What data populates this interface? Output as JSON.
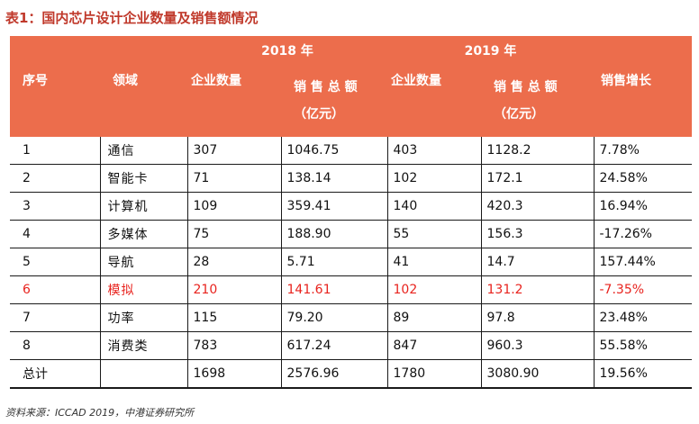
{
  "title": "表1：国内芯片设计企业数量及销售额情况",
  "header": {
    "year_2018": "2018 年",
    "year_2019": "2019 年",
    "col_idx": "序号",
    "col_field": "领域",
    "col_count_2018": "企业数量",
    "col_sales_2018_line1": "销 售 总 额",
    "col_sales_2018_line2": "（亿元）",
    "col_count_2019": "企业数量",
    "col_sales_2019_line1": "销 售 总 额",
    "col_sales_2019_line2": "（亿元）",
    "col_growth": "销售增长"
  },
  "rows": [
    {
      "idx": "1",
      "field": "通信",
      "c2018": "307",
      "s2018": "1046.75",
      "c2019": "403",
      "s2019": "1128.2",
      "growth": "7.78%"
    },
    {
      "idx": "2",
      "field": "智能卡",
      "c2018": "71",
      "s2018": "138.14",
      "c2019": "102",
      "s2019": "172.1",
      "growth": "24.58%"
    },
    {
      "idx": "3",
      "field": "计算机",
      "c2018": "109",
      "s2018": "359.41",
      "c2019": "140",
      "s2019": "420.3",
      "growth": "16.94%"
    },
    {
      "idx": "4",
      "field": "多媒体",
      "c2018": "75",
      "s2018": "188.90",
      "c2019": "55",
      "s2019": "156.3",
      "growth": "-17.26%"
    },
    {
      "idx": "5",
      "field": "导航",
      "c2018": "28",
      "s2018": "5.71",
      "c2019": "41",
      "s2019": "14.7",
      "growth": "157.44%"
    },
    {
      "idx": "6",
      "field": "模拟",
      "c2018": "210",
      "s2018": "141.61",
      "c2019": "102",
      "s2019": "131.2",
      "growth": "-7.35%"
    },
    {
      "idx": "7",
      "field": "功率",
      "c2018": "115",
      "s2018": "79.20",
      "c2019": "89",
      "s2019": "97.8",
      "growth": "23.48%"
    },
    {
      "idx": "8",
      "field": "消费类",
      "c2018": "783",
      "s2018": "617.24",
      "c2019": "847",
      "s2019": "960.3",
      "growth": "55.58%"
    }
  ],
  "total": {
    "idx": "总计",
    "field": "",
    "c2018": "1698",
    "s2018": "2576.96",
    "c2019": "1780",
    "s2019": "3080.90",
    "growth": "19.56%"
  },
  "source": "资料来源：ICCAD 2019，中港证券研究所",
  "colors": {
    "header_bg": "#ec6d4c",
    "highlight_text": "#e8231e",
    "title_text": "#c0392b"
  }
}
